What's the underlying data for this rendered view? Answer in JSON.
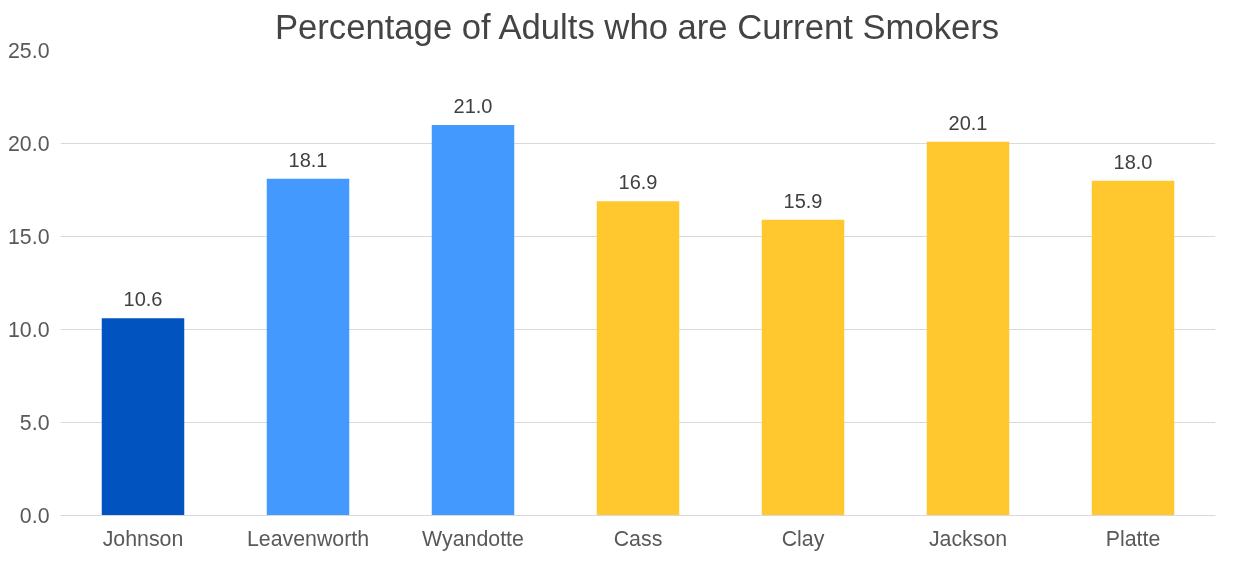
{
  "chart_data": {
    "type": "bar",
    "title": "Percentage of Adults who are Current Smokers",
    "categories": [
      "Johnson",
      "Leavenworth",
      "Wyandotte",
      "Cass",
      "Clay",
      "Jackson",
      "Platte"
    ],
    "values": [
      10.6,
      18.1,
      21.0,
      16.9,
      15.9,
      20.1,
      18.0
    ],
    "colors": [
      "#0154bf",
      "#4499ff",
      "#4499ff",
      "#ffc82e",
      "#ffc82e",
      "#ffc82e",
      "#ffc82e"
    ],
    "ylim": [
      0,
      25
    ],
    "yticks": [
      {
        "value": 0,
        "label": "0.0"
      },
      {
        "value": 5,
        "label": "5.0"
      },
      {
        "value": 10,
        "label": "10.0"
      },
      {
        "value": 15,
        "label": "15.0"
      },
      {
        "value": 20,
        "label": "20.0"
      },
      {
        "value": 25,
        "label": "25.0"
      }
    ],
    "value_labels": [
      "10.6",
      "18.1",
      "21.0",
      "16.9",
      "15.9",
      "20.1",
      "18.0"
    ],
    "grid": "y"
  }
}
